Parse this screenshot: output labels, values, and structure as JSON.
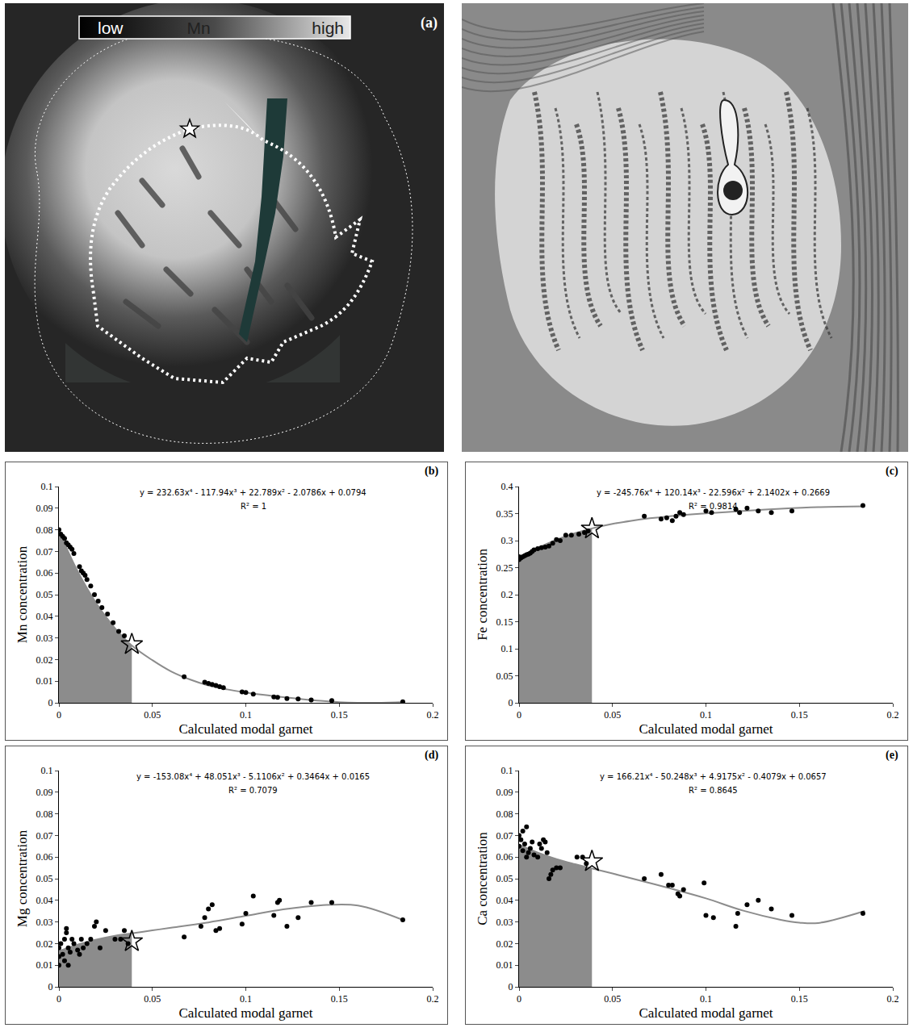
{
  "panel_a": {
    "label": "(a)",
    "scale_labels": [
      "low",
      "Mn",
      "high"
    ]
  },
  "chart_data": [
    {
      "type": "scatter",
      "label": "(b)",
      "equation": "y = 232.63x⁴ - 117.94x³ + 22.789x² - 2.0786x + 0.0794",
      "r_squared": "R² = 1",
      "x_label": "Calculated modal garnet",
      "y_label": "Mn concentration",
      "xlim": [
        0,
        0.2
      ],
      "xticks": [
        0,
        0.05,
        0.1,
        0.15,
        0.2
      ],
      "ylim": [
        0,
        0.1
      ],
      "yticks": [
        0,
        0.01,
        0.02,
        0.03,
        0.04,
        0.05,
        0.06,
        0.07,
        0.08,
        0.09,
        0.1
      ],
      "points": {
        "marker": "circle",
        "color": "#000000",
        "x": [
          0,
          0.001,
          0.002,
          0.003,
          0.004,
          0.005,
          0.006,
          0.007,
          0.008,
          0.011,
          0.012,
          0.013,
          0.014,
          0.015,
          0.017,
          0.019,
          0.021,
          0.023,
          0.026,
          0.029,
          0.032,
          0.035,
          0.067,
          0.078,
          0.08,
          0.082,
          0.084,
          0.086,
          0.088,
          0.098,
          0.1,
          0.104,
          0.115,
          0.117,
          0.122,
          0.128,
          0.135,
          0.146,
          0.184
        ],
        "y": [
          0.08,
          0.078,
          0.077,
          0.076,
          0.074,
          0.073,
          0.072,
          0.071,
          0.069,
          0.063,
          0.061,
          0.06,
          0.059,
          0.057,
          0.054,
          0.05,
          0.047,
          0.044,
          0.041,
          0.037,
          0.033,
          0.031,
          0.012,
          0.0095,
          0.009,
          0.0085,
          0.008,
          0.0075,
          0.007,
          0.005,
          0.0048,
          0.004,
          0.0027,
          0.0025,
          0.002,
          0.0018,
          0.0013,
          0.001,
          0.0005
        ]
      },
      "curve": {
        "line_style": "solid",
        "color": "#8c8c8c",
        "x": [
          0,
          0.01,
          0.02,
          0.03,
          0.039,
          0.05,
          0.06,
          0.07,
          0.08,
          0.09,
          0.1,
          0.11,
          0.12,
          0.13,
          0.14,
          0.15,
          0.16,
          0.17,
          0.185
        ],
        "y": [
          0.0794,
          0.0608,
          0.046,
          0.0345,
          0.0265,
          0.0197,
          0.0145,
          0.0108,
          0.008,
          0.0062,
          0.0048,
          0.0036,
          0.0026,
          0.0017,
          0.0009,
          0.0003,
          0,
          0,
          0.0004
        ]
      },
      "shaded": {
        "color": "#8c8c8c",
        "x": [
          0,
          0.01,
          0.02,
          0.03,
          0.039
        ],
        "y": [
          0.0794,
          0.0608,
          0.046,
          0.0345,
          0.0265
        ]
      },
      "star": {
        "marker": "star-open",
        "color": "#000000",
        "x": 0.039,
        "y": 0.027
      }
    },
    {
      "type": "scatter",
      "label": "(c)",
      "equation": "y = -245.76x⁴ + 120.14x³ - 22.596x² + 2.1402x + 0.2669",
      "r_squared": "R² = 0.9814",
      "x_label": "Calculated modal garnet",
      "y_label": "Fe concentration",
      "xlim": [
        0,
        0.2
      ],
      "xticks": [
        0,
        0.05,
        0.1,
        0.15,
        0.2
      ],
      "ylim": [
        0,
        0.4
      ],
      "yticks": [
        0,
        0.05,
        0.1,
        0.15,
        0.2,
        0.25,
        0.3,
        0.35,
        0.4
      ],
      "points": {
        "marker": "circle",
        "color": "#000000",
        "x": [
          0,
          0,
          0.001,
          0.002,
          0.003,
          0.004,
          0.005,
          0.006,
          0.007,
          0.008,
          0.01,
          0.012,
          0.014,
          0.016,
          0.018,
          0.02,
          0.022,
          0.025,
          0.028,
          0.032,
          0.035,
          0.037,
          0.067,
          0.076,
          0.079,
          0.082,
          0.084,
          0.086,
          0.088,
          0.1,
          0.103,
          0.116,
          0.118,
          0.122,
          0.128,
          0.135,
          0.146,
          0.184
        ],
        "y": [
          0.265,
          0.27,
          0.268,
          0.27,
          0.272,
          0.274,
          0.275,
          0.277,
          0.28,
          0.283,
          0.285,
          0.287,
          0.288,
          0.29,
          0.295,
          0.302,
          0.3,
          0.31,
          0.31,
          0.312,
          0.315,
          0.318,
          0.345,
          0.34,
          0.342,
          0.337,
          0.345,
          0.352,
          0.348,
          0.355,
          0.352,
          0.358,
          0.352,
          0.36,
          0.355,
          0.352,
          0.355,
          0.365
        ]
      },
      "curve": {
        "line_style": "solid",
        "color": "#8c8c8c",
        "x": [
          0,
          0.01,
          0.02,
          0.03,
          0.039,
          0.05,
          0.06,
          0.07,
          0.08,
          0.1,
          0.12,
          0.14,
          0.16,
          0.185
        ],
        "y": [
          0.267,
          0.2862,
          0.3016,
          0.3138,
          0.3226,
          0.331,
          0.3367,
          0.3413,
          0.3449,
          0.3503,
          0.3549,
          0.3589,
          0.3619,
          0.3635
        ]
      },
      "shaded": {
        "color": "#8c8c8c",
        "x": [
          0,
          0.01,
          0.02,
          0.03,
          0.039
        ],
        "y": [
          0.267,
          0.2862,
          0.3016,
          0.3138,
          0.3226
        ]
      },
      "star": {
        "marker": "star-open",
        "color": "#000000",
        "x": 0.039,
        "y": 0.322
      }
    },
    {
      "type": "scatter",
      "label": "(d)",
      "equation": "y = -153.08x⁴ + 48.051x³ - 5.1106x² + 0.3464x + 0.0165",
      "r_squared": "R² = 0.7079",
      "x_label": "Calculated modal garnet",
      "y_label": "Mg concentration",
      "xlim": [
        0,
        0.2
      ],
      "xticks": [
        0,
        0.05,
        0.1,
        0.15,
        0.2
      ],
      "ylim": [
        0,
        0.1
      ],
      "yticks": [
        0,
        0.01,
        0.02,
        0.03,
        0.04,
        0.05,
        0.06,
        0.07,
        0.08,
        0.09,
        0.1
      ],
      "points": {
        "marker": "circle",
        "color": "#000000",
        "x": [
          0,
          0,
          0,
          0.001,
          0.002,
          0.003,
          0.003,
          0.004,
          0.004,
          0.005,
          0.005,
          0.006,
          0.007,
          0.008,
          0.01,
          0.011,
          0.012,
          0.013,
          0.015,
          0.017,
          0.019,
          0.02,
          0.022,
          0.025,
          0.03,
          0.033,
          0.035,
          0.037,
          0.067,
          0.076,
          0.078,
          0.08,
          0.082,
          0.084,
          0.086,
          0.098,
          0.1,
          0.104,
          0.115,
          0.117,
          0.118,
          0.122,
          0.128,
          0.135,
          0.146,
          0.184
        ],
        "y": [
          0.014,
          0.018,
          0.01,
          0.02,
          0.015,
          0.022,
          0.012,
          0.025,
          0.027,
          0.018,
          0.01,
          0.016,
          0.022,
          0.02,
          0.017,
          0.015,
          0.022,
          0.018,
          0.02,
          0.022,
          0.028,
          0.03,
          0.018,
          0.026,
          0.022,
          0.022,
          0.026,
          0.02,
          0.023,
          0.028,
          0.032,
          0.036,
          0.038,
          0.026,
          0.027,
          0.029,
          0.034,
          0.042,
          0.033,
          0.039,
          0.04,
          0.028,
          0.032,
          0.039,
          0.039,
          0.031
        ]
      },
      "curve": {
        "line_style": "solid",
        "color": "#8c8c8c",
        "x": [
          0,
          0.01,
          0.02,
          0.03,
          0.039,
          0.05,
          0.06,
          0.08,
          0.1,
          0.12,
          0.14,
          0.16,
          0.185
        ],
        "y": [
          0.0165,
          0.0195,
          0.0218,
          0.0236,
          0.0247,
          0.0261,
          0.0273,
          0.0298,
          0.0328,
          0.0358,
          0.0377,
          0.0376,
          0.0306
        ]
      },
      "shaded": {
        "color": "#8c8c8c",
        "x": [
          0,
          0.01,
          0.02,
          0.03,
          0.039
        ],
        "y": [
          0.0165,
          0.0195,
          0.0218,
          0.0236,
          0.0247
        ]
      },
      "star": {
        "marker": "star-open",
        "color": "#000000",
        "x": 0.039,
        "y": 0.021
      }
    },
    {
      "type": "scatter",
      "label": "(e)",
      "equation": "y = 166.21x⁴ - 50.248x³ + 4.9175x² - 0.4079x + 0.0657",
      "r_squared": "R² = 0.8645",
      "x_label": "Calculated modal garnet",
      "y_label": "Ca concentration",
      "xlim": [
        0,
        0.2
      ],
      "xticks": [
        0,
        0.05,
        0.1,
        0.15,
        0.2
      ],
      "ylim": [
        0,
        0.1
      ],
      "yticks": [
        0,
        0.01,
        0.02,
        0.03,
        0.04,
        0.05,
        0.06,
        0.07,
        0.08,
        0.09,
        0.1
      ],
      "points": {
        "marker": "circle",
        "color": "#000000",
        "x": [
          0,
          0,
          0.001,
          0.002,
          0.002,
          0.003,
          0.004,
          0.004,
          0.005,
          0.006,
          0.007,
          0.008,
          0.01,
          0.011,
          0.012,
          0.013,
          0.014,
          0.015,
          0.016,
          0.017,
          0.018,
          0.02,
          0.022,
          0.031,
          0.034,
          0.036,
          0.067,
          0.076,
          0.08,
          0.082,
          0.085,
          0.086,
          0.088,
          0.099,
          0.1,
          0.104,
          0.116,
          0.117,
          0.122,
          0.128,
          0.135,
          0.146,
          0.184
        ],
        "y": [
          0.065,
          0.07,
          0.068,
          0.072,
          0.063,
          0.066,
          0.074,
          0.06,
          0.062,
          0.064,
          0.067,
          0.061,
          0.06,
          0.066,
          0.064,
          0.068,
          0.067,
          0.062,
          0.05,
          0.052,
          0.054,
          0.055,
          0.055,
          0.06,
          0.06,
          0.057,
          0.05,
          0.052,
          0.047,
          0.047,
          0.043,
          0.042,
          0.045,
          0.048,
          0.033,
          0.032,
          0.028,
          0.034,
          0.038,
          0.04,
          0.036,
          0.033,
          0.034
        ]
      },
      "curve": {
        "line_style": "solid",
        "color": "#8c8c8c",
        "x": [
          0,
          0.01,
          0.02,
          0.03,
          0.039,
          0.05,
          0.06,
          0.08,
          0.1,
          0.12,
          0.14,
          0.15,
          0.16,
          0.185
        ],
        "y": [
          0.0657,
          0.0621,
          0.0591,
          0.0567,
          0.0547,
          0.0524,
          0.0502,
          0.0457,
          0.0409,
          0.0352,
          0.031,
          0.0297,
          0.0295,
          0.0351
        ]
      },
      "shaded": {
        "color": "#8c8c8c",
        "x": [
          0,
          0.01,
          0.02,
          0.03,
          0.039
        ],
        "y": [
          0.0657,
          0.0621,
          0.0591,
          0.0567,
          0.0547
        ]
      },
      "star": {
        "marker": "star-open",
        "color": "#000000",
        "x": 0.039,
        "y": 0.058
      }
    }
  ]
}
